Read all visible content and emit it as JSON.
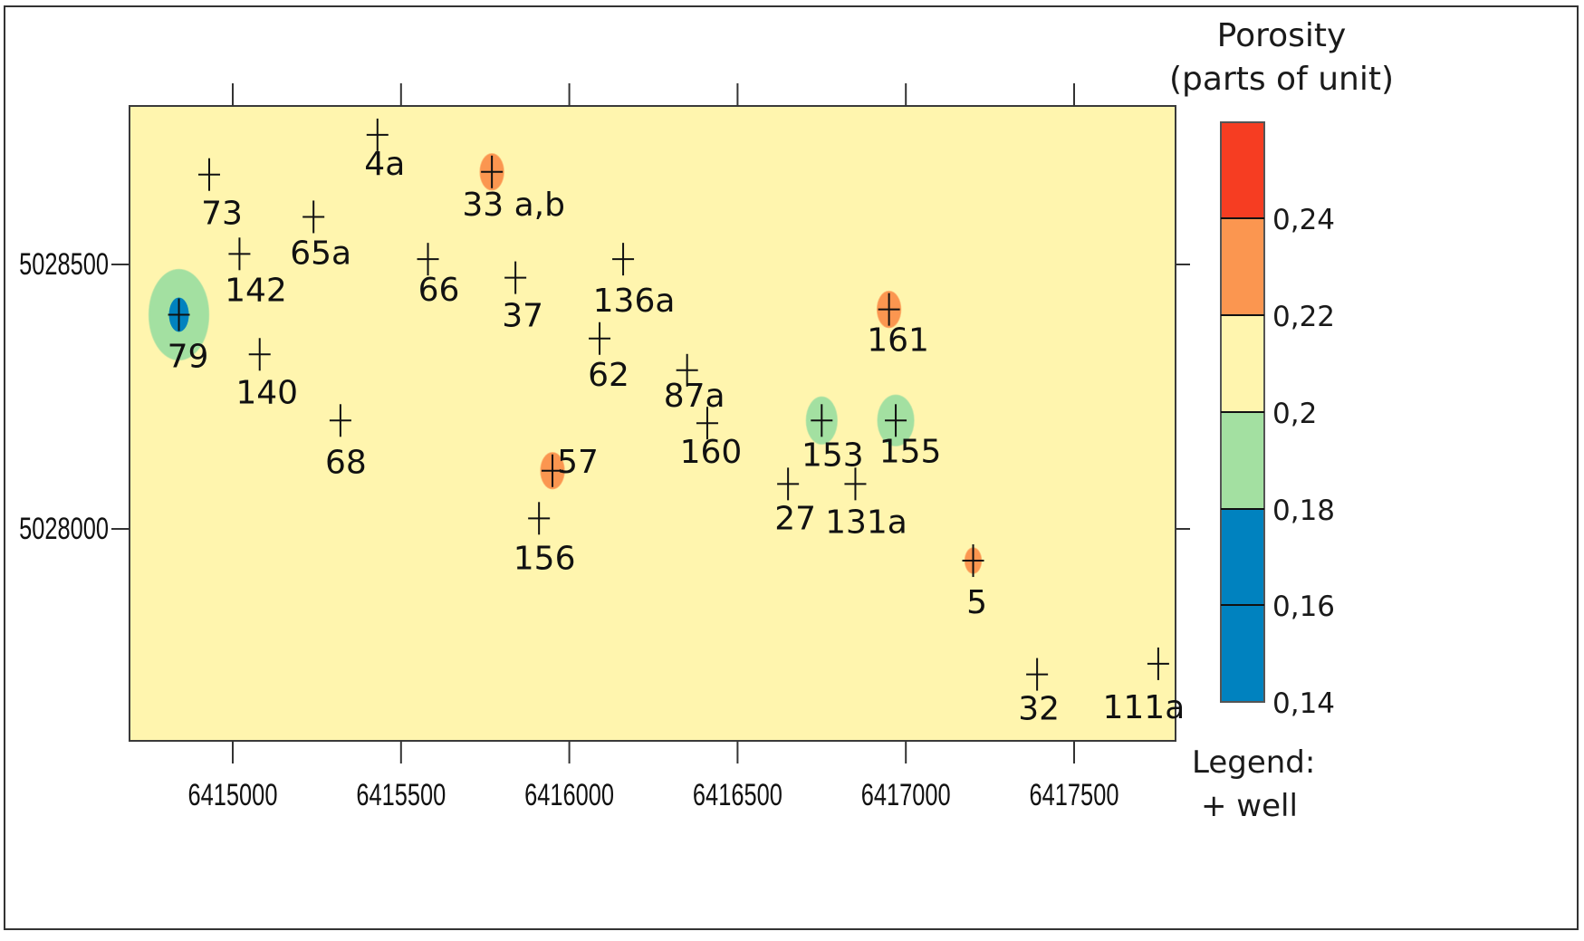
{
  "chart_data": {
    "type": "heatmap",
    "subtype": "contour-map-with-well-points",
    "title": "",
    "xlabel": "",
    "ylabel": "",
    "xlim": [
      6414690,
      6417790
    ],
    "ylim": [
      5027610,
      5028810
    ],
    "x_ticks": [
      6415000,
      6415500,
      6416000,
      6416500,
      6417000,
      6417500
    ],
    "x_tick_labels": [
      "6415000",
      "6415500",
      "6416000",
      "6416500",
      "6417000",
      "6417500"
    ],
    "y_ticks": [
      5028500,
      5028000
    ],
    "y_tick_labels": [
      "5028500",
      "5028000"
    ],
    "grid": false,
    "background_class": "0,2 - 0,22",
    "legend": {
      "title_line1": "Porosity",
      "title_line2": "(parts of unit)",
      "position": "right",
      "bounds": [
        0.14,
        0.16,
        0.18,
        0.2,
        0.22,
        0.24
      ],
      "bound_labels": [
        "0,14",
        "0,16",
        "0,18",
        "0,2",
        "0,22",
        "0,24"
      ],
      "classes": [
        {
          "range": "> 0,24",
          "color": "#f63d22"
        },
        {
          "range": "0,22 - 0,24",
          "color": "#fb9650"
        },
        {
          "range": "0,2 - 0,22",
          "color": "#fff5ae"
        },
        {
          "range": "0,18 - 0,2",
          "color": "#a3e0a1"
        },
        {
          "range": "0,16 - 0,18",
          "color": "#0082bf"
        },
        {
          "range": "0,14 - 0,16",
          "color": "#0082bf"
        }
      ],
      "note_line1": "Legend:",
      "note_line2": "+ well"
    },
    "wells": [
      {
        "id": "4a",
        "x": 6415430,
        "y": 5028745
      },
      {
        "id": "73",
        "x": 6414930,
        "y": 5028670
      },
      {
        "id": "33 a,b",
        "x": 6415770,
        "y": 5028675
      },
      {
        "id": "65a",
        "x": 6415240,
        "y": 5028590
      },
      {
        "id": "142",
        "x": 6415020,
        "y": 5028520
      },
      {
        "id": "66",
        "x": 6415580,
        "y": 5028510
      },
      {
        "id": "37",
        "x": 6415840,
        "y": 5028475
      },
      {
        "id": "136a",
        "x": 6416160,
        "y": 5028510
      },
      {
        "id": "79",
        "x": 6414840,
        "y": 5028405
      },
      {
        "id": "161",
        "x": 6416950,
        "y": 5028415
      },
      {
        "id": "140",
        "x": 6415080,
        "y": 5028330
      },
      {
        "id": "62",
        "x": 6416090,
        "y": 5028360
      },
      {
        "id": "87a",
        "x": 6416350,
        "y": 5028300
      },
      {
        "id": "68",
        "x": 6415320,
        "y": 5028205
      },
      {
        "id": "160",
        "x": 6416410,
        "y": 5028200
      },
      {
        "id": "153",
        "x": 6416750,
        "y": 5028205
      },
      {
        "id": "155",
        "x": 6416970,
        "y": 5028205
      },
      {
        "id": "57",
        "x": 6415950,
        "y": 5028110
      },
      {
        "id": "27",
        "x": 6416650,
        "y": 5028085
      },
      {
        "id": "131a",
        "x": 6416850,
        "y": 5028085
      },
      {
        "id": "156",
        "x": 6415910,
        "y": 5028020
      },
      {
        "id": "5",
        "x": 6417200,
        "y": 5027940
      },
      {
        "id": "32",
        "x": 6417390,
        "y": 5027725
      },
      {
        "id": "111a",
        "x": 6417750,
        "y": 5027745
      }
    ],
    "anomalies": [
      {
        "well": "79",
        "class": "0,18 - 0,2",
        "color": "#a3e0a1",
        "core_class": "0,16 - 0,18",
        "core_color": "#0082bf"
      },
      {
        "well": "33 a,b",
        "class": "0,22 - 0,24",
        "color": "#fb9650"
      },
      {
        "well": "161",
        "class": "0,22 - 0,24",
        "color": "#fb9650"
      },
      {
        "well": "57",
        "class": "0,22 - 0,24",
        "color": "#fb9650"
      },
      {
        "well": "5",
        "class": "0,22 - 0,24",
        "color": "#fb9650"
      },
      {
        "well": "153",
        "class": "0,18 - 0,2",
        "color": "#a3e0a1"
      },
      {
        "well": "155",
        "class": "0,18 - 0,2",
        "color": "#a3e0a1"
      }
    ]
  }
}
